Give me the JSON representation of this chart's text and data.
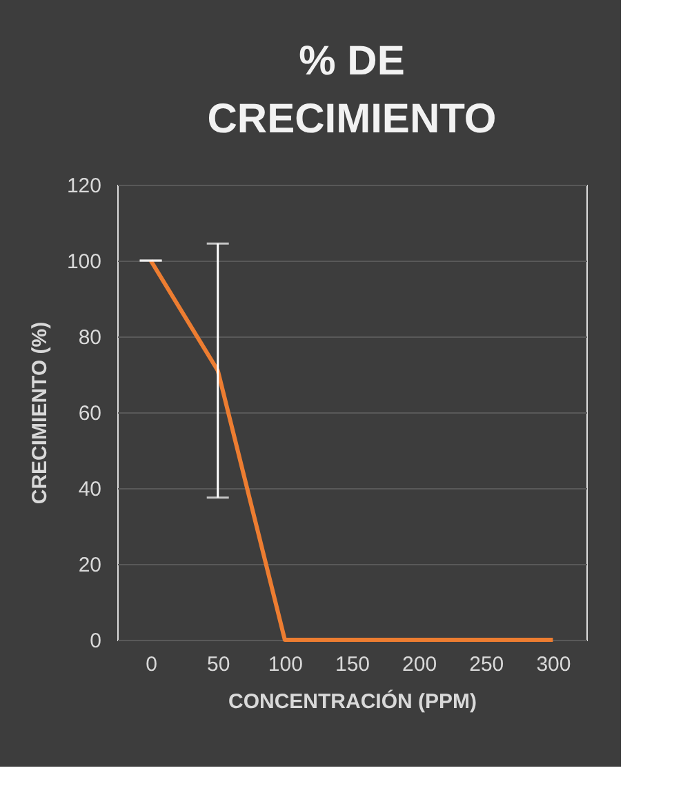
{
  "chart_data": {
    "type": "line",
    "title": "% DE CRECIMIENTO",
    "xlabel": "CONCENTRACIÓN (PPM)",
    "ylabel": "CRECIMIENTO (%)",
    "categories": [
      "0",
      "50",
      "100",
      "150",
      "200",
      "250",
      "300"
    ],
    "series": [
      {
        "color": "#ed7d31",
        "values": [
          100,
          71,
          0,
          0,
          0,
          0,
          0
        ],
        "errors": [
          0,
          33.5,
          null,
          null,
          null,
          null,
          null
        ]
      }
    ],
    "ylim": [
      0,
      120
    ],
    "yticks": [
      0,
      20,
      40,
      60,
      80,
      100,
      120
    ],
    "grid": "y",
    "marker": "none",
    "line_style": "solid"
  }
}
